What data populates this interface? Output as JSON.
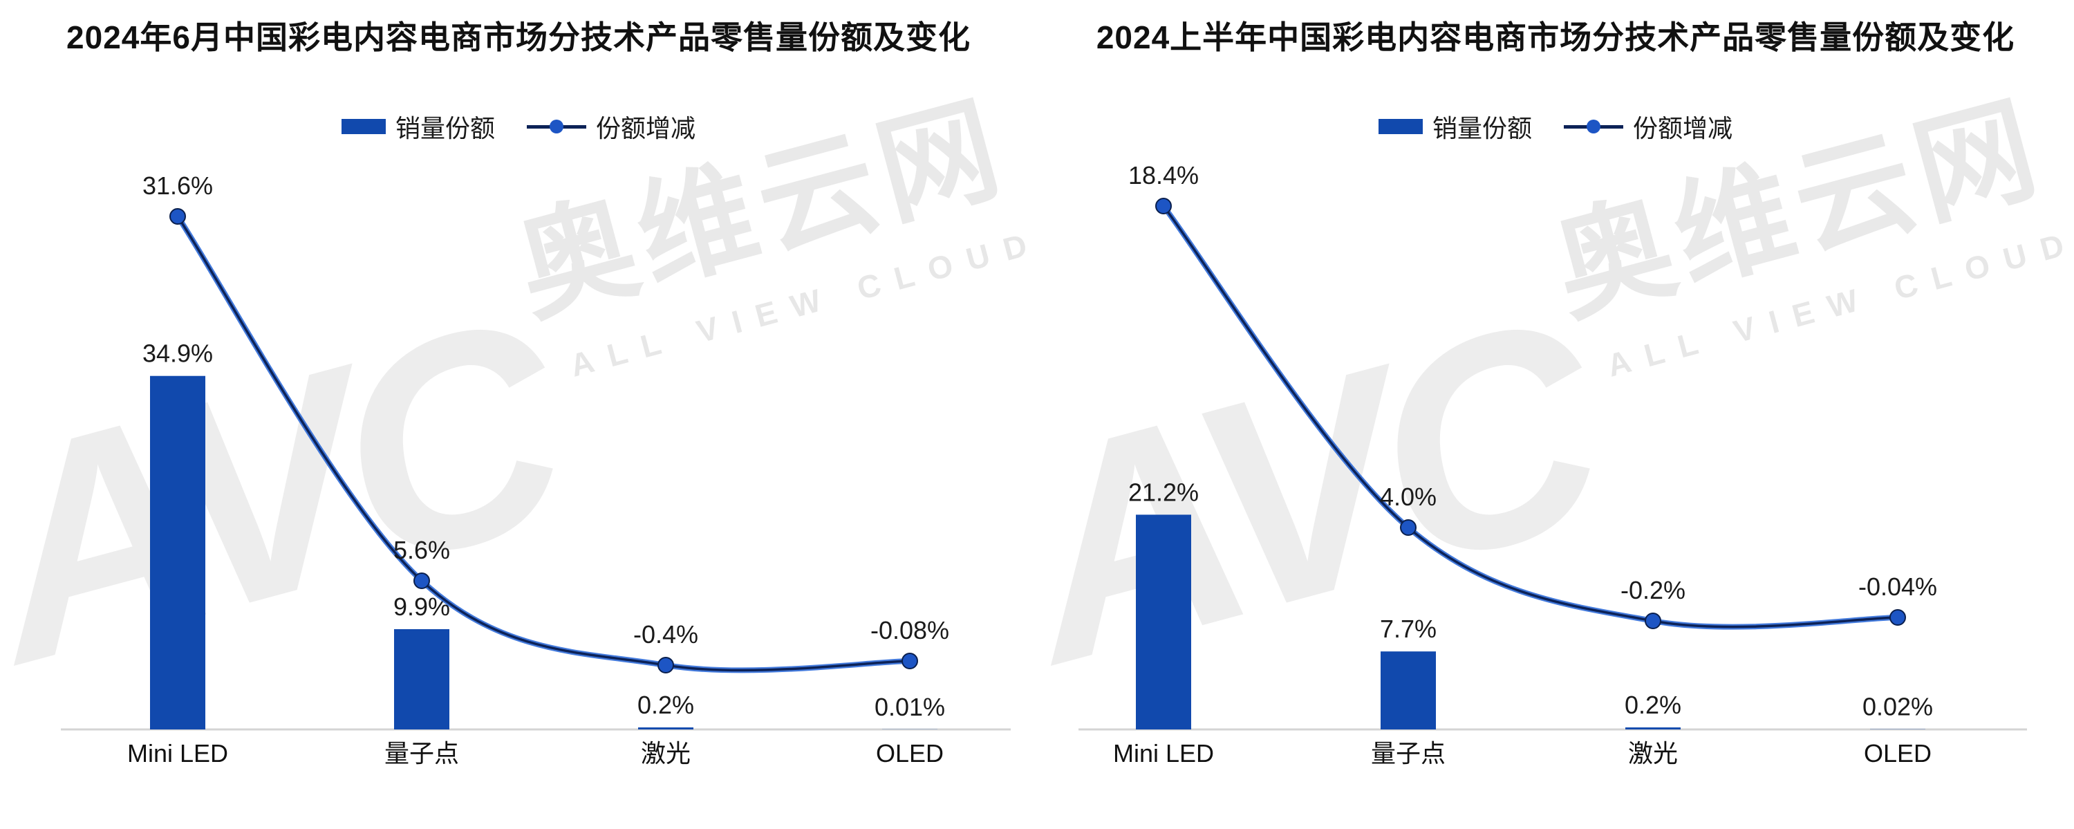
{
  "watermark": {
    "logo_letters": "AVC",
    "brand_cn": "奥维云网",
    "brand_en": "ALL VIEW CLOUD"
  },
  "colors": {
    "bar": "#1149ad",
    "line_core": "#0c2257",
    "line_glow": "#2f6bd8",
    "marker_fill": "#1d55c4",
    "marker_stroke": "#0a1f4d",
    "axis": "#d4d4d4",
    "label_text": "#1a1a1a",
    "watermark": "#ededed"
  },
  "chart_data": [
    {
      "type": "bar",
      "title": "2024年6月中国彩电内容电商市场分技术产品零售量份额及变化",
      "categories": [
        "Mini LED",
        "量子点",
        "激光",
        "OLED"
      ],
      "unit": "%",
      "grid": false,
      "y_axis_visible": false,
      "legend_position": "top",
      "series": [
        {
          "name": "销量份额",
          "kind": "bar",
          "values": [
            34.9,
            9.9,
            0.2,
            0.01
          ],
          "labels": [
            "34.9%",
            "9.9%",
            "0.2%",
            "0.01%"
          ]
        },
        {
          "name": "份额增减",
          "kind": "line",
          "values": [
            31.6,
            5.6,
            -0.4,
            -0.08
          ],
          "labels": [
            "31.6%",
            "5.6%",
            "-0.4%",
            "-0.08%"
          ]
        }
      ]
    },
    {
      "type": "bar",
      "title": "2024上半年中国彩电内容电商市场分技术产品零售量份额及变化",
      "categories": [
        "Mini LED",
        "量子点",
        "激光",
        "OLED"
      ],
      "unit": "%",
      "grid": false,
      "y_axis_visible": false,
      "legend_position": "top",
      "series": [
        {
          "name": "销量份额",
          "kind": "bar",
          "values": [
            21.2,
            7.7,
            0.2,
            0.02
          ],
          "labels": [
            "21.2%",
            "7.7%",
            "0.2%",
            "0.02%"
          ]
        },
        {
          "name": "份额增减",
          "kind": "line",
          "values": [
            18.4,
            4.0,
            -0.2,
            -0.04
          ],
          "labels": [
            "18.4%",
            "4.0%",
            "-0.2%",
            "-0.04%"
          ]
        }
      ]
    }
  ]
}
